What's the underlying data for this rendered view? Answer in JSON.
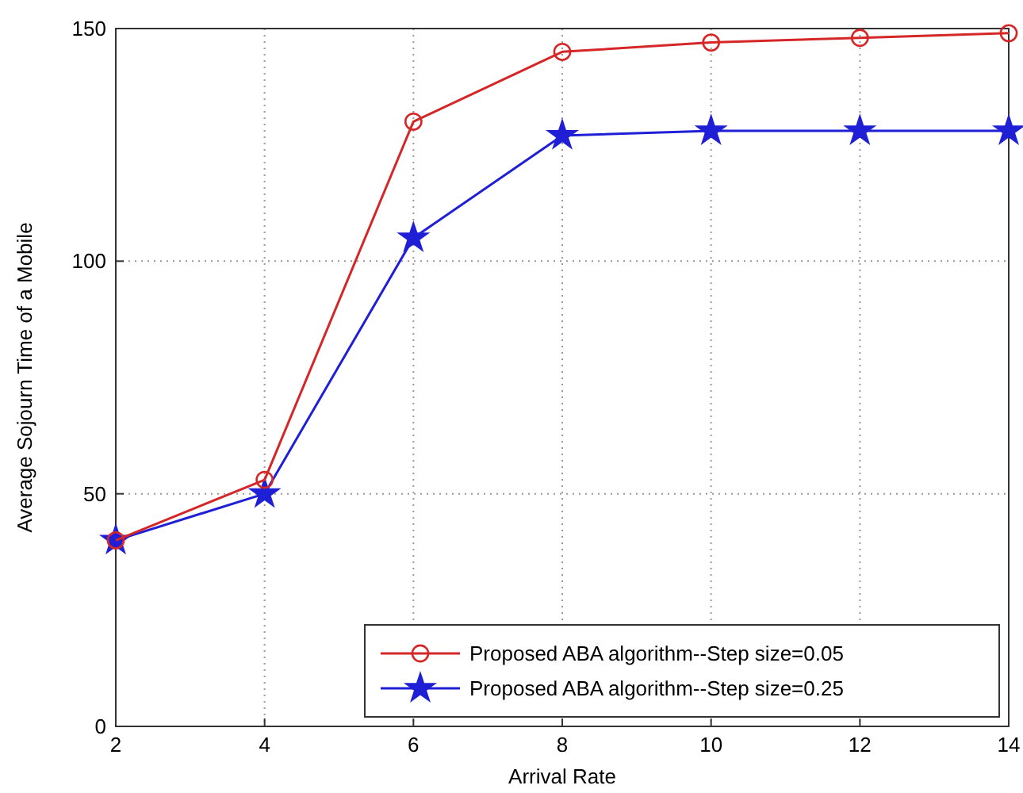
{
  "chart_data": {
    "type": "line",
    "xlabel": "Arrival Rate",
    "ylabel": "Average Sojourn Time of a Mobile",
    "x": [
      2,
      4,
      6,
      8,
      10,
      12,
      14
    ],
    "series": [
      {
        "name": "Proposed ABA algorithm--Step size=0.05",
        "color": "#d62728",
        "marker": "circle",
        "values": [
          40,
          53,
          130,
          145,
          147,
          148,
          149
        ]
      },
      {
        "name": "Proposed ABA algorithm--Step size=0.25",
        "color": "#1f1fd6",
        "marker": "star",
        "values": [
          40,
          50,
          105,
          127,
          128,
          128,
          128
        ]
      }
    ],
    "xlim": [
      2,
      14
    ],
    "xticks": [
      2,
      4,
      6,
      8,
      10,
      12,
      14
    ],
    "ylim": [
      0,
      150
    ],
    "yticks": [
      0,
      50,
      100,
      150
    ],
    "grid": true,
    "legend": "bottom right",
    "line_style": "solid"
  }
}
